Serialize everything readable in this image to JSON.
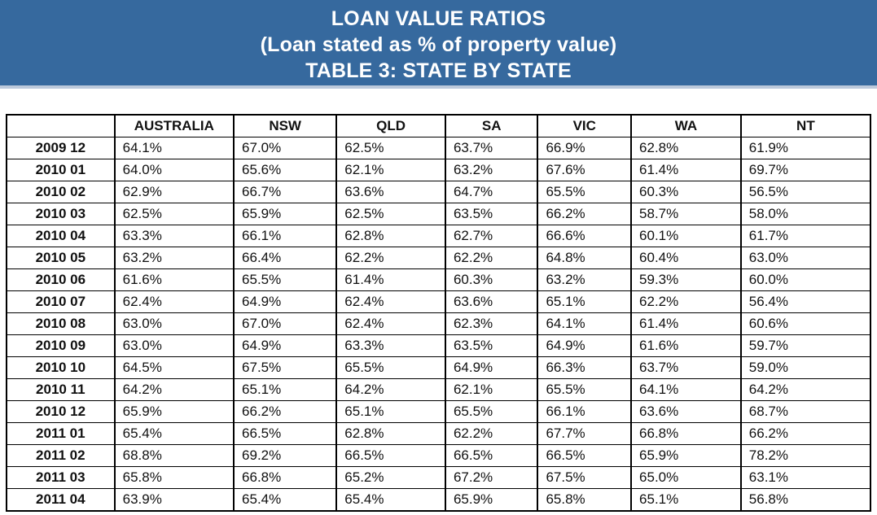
{
  "banner": {
    "title": "LOAN VALUE RATIOS",
    "subtitle": "(Loan stated as % of property value)",
    "table_label": "TABLE 3: STATE BY STATE"
  },
  "colors": {
    "banner_bg": "#36699E",
    "banner_strip": "#BCC9DB",
    "banner_text": "#FFFFFF",
    "table_border": "#000000",
    "table_text": "#111111"
  },
  "chart_data": {
    "type": "table",
    "title": "LOAN VALUE RATIOS",
    "subtitle": "(Loan stated as % of property value)",
    "table_label": "TABLE 3: STATE BY STATE",
    "columns": [
      "",
      "AUSTRALIA",
      "NSW",
      "QLD",
      "SA",
      "VIC",
      "WA",
      "NT"
    ],
    "rows": [
      {
        "label": "2009 12",
        "values": [
          "64.1%",
          "67.0%",
          "62.5%",
          "63.7%",
          "66.9%",
          "62.8%",
          "61.9%"
        ]
      },
      {
        "label": "2010 01",
        "values": [
          "64.0%",
          "65.6%",
          "62.1%",
          "63.2%",
          "67.6%",
          "61.4%",
          "69.7%"
        ]
      },
      {
        "label": "2010 02",
        "values": [
          "62.9%",
          "66.7%",
          "63.6%",
          "64.7%",
          "65.5%",
          "60.3%",
          "56.5%"
        ]
      },
      {
        "label": "2010 03",
        "values": [
          "62.5%",
          "65.9%",
          "62.5%",
          "63.5%",
          "66.2%",
          "58.7%",
          "58.0%"
        ]
      },
      {
        "label": "2010 04",
        "values": [
          "63.3%",
          "66.1%",
          "62.8%",
          "62.7%",
          "66.6%",
          "60.1%",
          "61.7%"
        ]
      },
      {
        "label": "2010 05",
        "values": [
          "63.2%",
          "66.4%",
          "62.2%",
          "62.2%",
          "64.8%",
          "60.4%",
          "63.0%"
        ]
      },
      {
        "label": "2010 06",
        "values": [
          "61.6%",
          "65.5%",
          "61.4%",
          "60.3%",
          "63.2%",
          "59.3%",
          "60.0%"
        ]
      },
      {
        "label": "2010 07",
        "values": [
          "62.4%",
          "64.9%",
          "62.4%",
          "63.6%",
          "65.1%",
          "62.2%",
          "56.4%"
        ]
      },
      {
        "label": "2010 08",
        "values": [
          "63.0%",
          "67.0%",
          "62.4%",
          "62.3%",
          "64.1%",
          "61.4%",
          "60.6%"
        ]
      },
      {
        "label": "2010 09",
        "values": [
          "63.0%",
          "64.9%",
          "63.3%",
          "63.5%",
          "64.9%",
          "61.6%",
          "59.7%"
        ]
      },
      {
        "label": "2010 10",
        "values": [
          "64.5%",
          "67.5%",
          "65.5%",
          "64.9%",
          "66.3%",
          "63.7%",
          "59.0%"
        ]
      },
      {
        "label": "2010 11",
        "values": [
          "64.2%",
          "65.1%",
          "64.2%",
          "62.1%",
          "65.5%",
          "64.1%",
          "64.2%"
        ]
      },
      {
        "label": "2010 12",
        "values": [
          "65.9%",
          "66.2%",
          "65.1%",
          "65.5%",
          "66.1%",
          "63.6%",
          "68.7%"
        ]
      },
      {
        "label": "2011 01",
        "values": [
          "65.4%",
          "66.5%",
          "62.8%",
          "62.2%",
          "67.7%",
          "66.8%",
          "66.2%"
        ]
      },
      {
        "label": "2011 02",
        "values": [
          "68.8%",
          "69.2%",
          "66.5%",
          "66.5%",
          "66.5%",
          "65.9%",
          "78.2%"
        ]
      },
      {
        "label": "2011 03",
        "values": [
          "65.8%",
          "66.8%",
          "65.2%",
          "67.2%",
          "67.5%",
          "65.0%",
          "63.1%"
        ]
      },
      {
        "label": "2011 04",
        "values": [
          "63.9%",
          "65.4%",
          "65.4%",
          "65.9%",
          "65.8%",
          "65.1%",
          "56.8%"
        ]
      }
    ]
  }
}
